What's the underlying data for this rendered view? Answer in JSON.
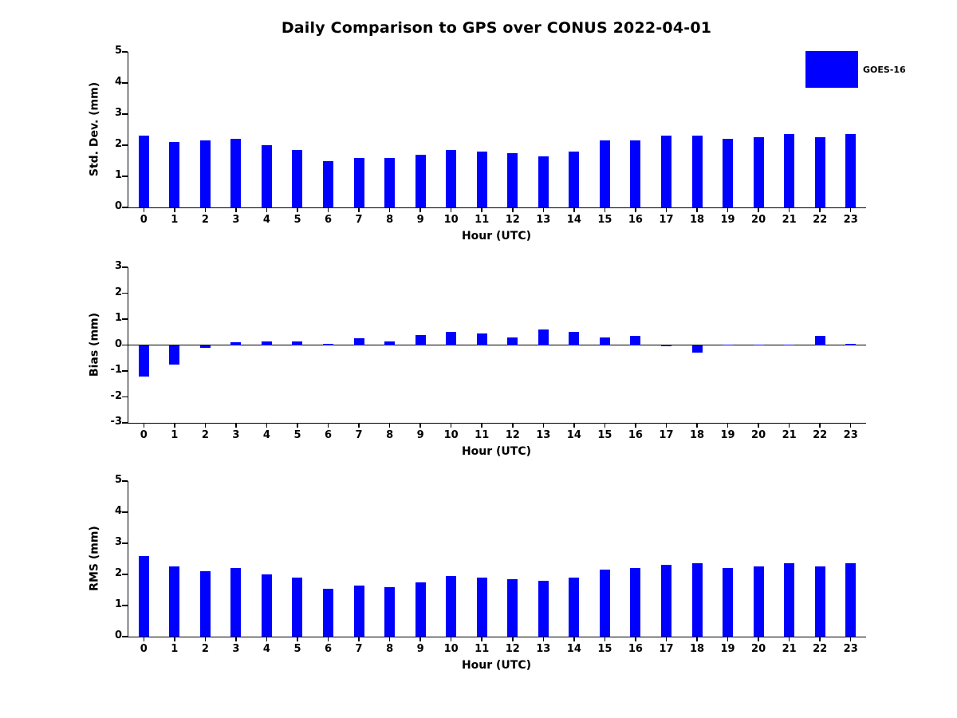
{
  "title": "Daily Comparison to GPS over CONUS 2022-04-01",
  "legend": {
    "label": "GOES-16",
    "color": "#0000ff"
  },
  "bar_color": "#0000ff",
  "chart_data": [
    {
      "type": "bar",
      "categories": [
        "0",
        "1",
        "2",
        "3",
        "4",
        "5",
        "6",
        "7",
        "8",
        "9",
        "10",
        "11",
        "12",
        "13",
        "14",
        "15",
        "16",
        "17",
        "18",
        "19",
        "20",
        "21",
        "22",
        "23"
      ],
      "values": [
        2.3,
        2.1,
        2.15,
        2.2,
        2.0,
        1.85,
        1.5,
        1.6,
        1.6,
        1.7,
        1.85,
        1.8,
        1.75,
        1.65,
        1.8,
        2.15,
        2.15,
        2.3,
        2.3,
        2.2,
        2.25,
        2.35,
        2.25,
        2.35
      ],
      "series_name": "GOES-16",
      "xlabel": "Hour (UTC)",
      "ylabel": "Std. Dev. (mm)",
      "ylim": [
        0,
        5
      ],
      "yticks": [
        0,
        1,
        2,
        3,
        4,
        5
      ],
      "grid": false
    },
    {
      "type": "bar",
      "categories": [
        "0",
        "1",
        "2",
        "3",
        "4",
        "5",
        "6",
        "7",
        "8",
        "9",
        "10",
        "11",
        "12",
        "13",
        "14",
        "15",
        "16",
        "17",
        "18",
        "19",
        "20",
        "21",
        "22",
        "23"
      ],
      "values": [
        -1.2,
        -0.75,
        -0.1,
        0.1,
        0.15,
        0.15,
        0.05,
        0.25,
        0.15,
        0.4,
        0.5,
        0.45,
        0.3,
        0.6,
        0.5,
        0.3,
        0.35,
        -0.05,
        -0.3,
        0.02,
        0.02,
        0.02,
        0.35,
        0.05
      ],
      "series_name": "GOES-16",
      "xlabel": "Hour (UTC)",
      "ylabel": "Bias (mm)",
      "ylim": [
        -3,
        3
      ],
      "yticks": [
        -3,
        -2,
        -1,
        0,
        1,
        2,
        3
      ],
      "grid": false
    },
    {
      "type": "bar",
      "categories": [
        "0",
        "1",
        "2",
        "3",
        "4",
        "5",
        "6",
        "7",
        "8",
        "9",
        "10",
        "11",
        "12",
        "13",
        "14",
        "15",
        "16",
        "17",
        "18",
        "19",
        "20",
        "21",
        "22",
        "23"
      ],
      "values": [
        2.6,
        2.25,
        2.1,
        2.2,
        2.0,
        1.9,
        1.55,
        1.65,
        1.6,
        1.75,
        1.95,
        1.9,
        1.85,
        1.8,
        1.9,
        2.15,
        2.2,
        2.3,
        2.35,
        2.2,
        2.25,
        2.35,
        2.25,
        2.35
      ],
      "series_name": "GOES-16",
      "xlabel": "Hour (UTC)",
      "ylabel": "RMS (mm)",
      "ylim": [
        0,
        5
      ],
      "yticks": [
        0,
        1,
        2,
        3,
        4,
        5
      ],
      "grid": false
    }
  ]
}
